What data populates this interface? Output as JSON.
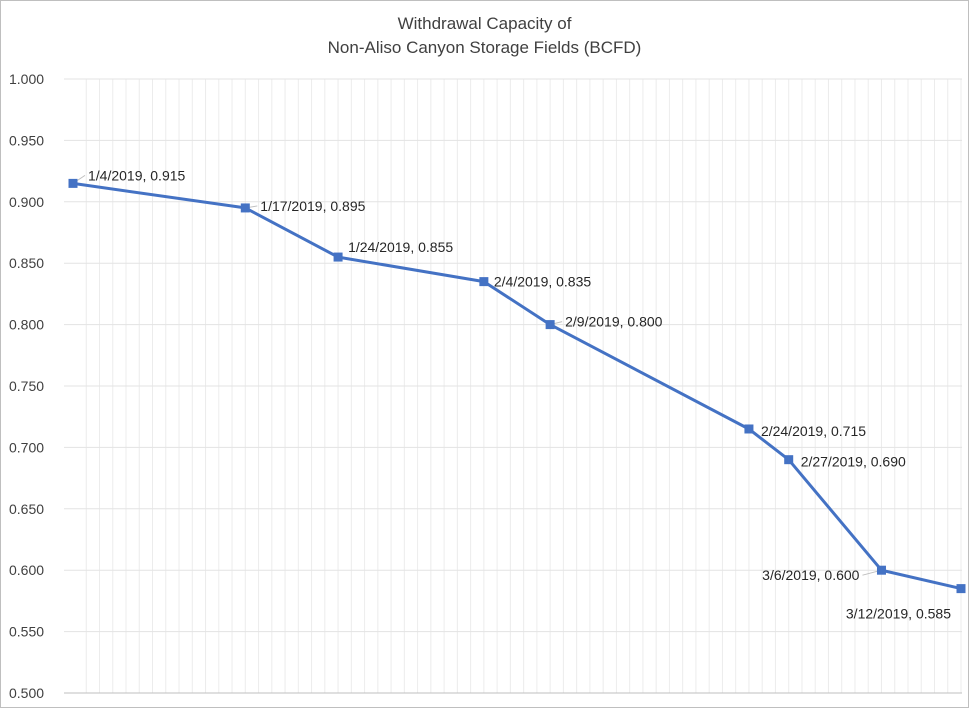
{
  "chart_data": {
    "type": "line",
    "title_line1": "Withdrawal Capacity of",
    "title_line2": "Non-Aliso Canyon Storage Fields (BCFD)",
    "xlabel": "",
    "ylabel": "",
    "ylim": [
      0.5,
      1.0
    ],
    "y_ticks": [
      "0.500",
      "0.550",
      "0.600",
      "0.650",
      "0.700",
      "0.750",
      "0.800",
      "0.850",
      "0.900",
      "0.950",
      "1.000"
    ],
    "x_start": "1/4/2019",
    "x_end": "3/12/2019",
    "grid": true,
    "legend": "none",
    "line_color": "#4472c4",
    "points": [
      {
        "x": "1/4/2019",
        "y": 0.915,
        "label": "1/4/2019, 0.915"
      },
      {
        "x": "1/17/2019",
        "y": 0.895,
        "label": "1/17/2019, 0.895"
      },
      {
        "x": "1/24/2019",
        "y": 0.855,
        "label": "1/24/2019, 0.855"
      },
      {
        "x": "2/4/2019",
        "y": 0.835,
        "label": "2/4/2019, 0.835"
      },
      {
        "x": "2/9/2019",
        "y": 0.8,
        "label": "2/9/2019, 0.800"
      },
      {
        "x": "2/24/2019",
        "y": 0.715,
        "label": "2/24/2019, 0.715"
      },
      {
        "x": "2/27/2019",
        "y": 0.69,
        "label": "2/27/2019, 0.690"
      },
      {
        "x": "3/6/2019",
        "y": 0.6,
        "label": "3/6/2019, 0.600"
      },
      {
        "x": "3/12/2019",
        "y": 0.585,
        "label": "3/12/2019, 0.585"
      }
    ]
  }
}
